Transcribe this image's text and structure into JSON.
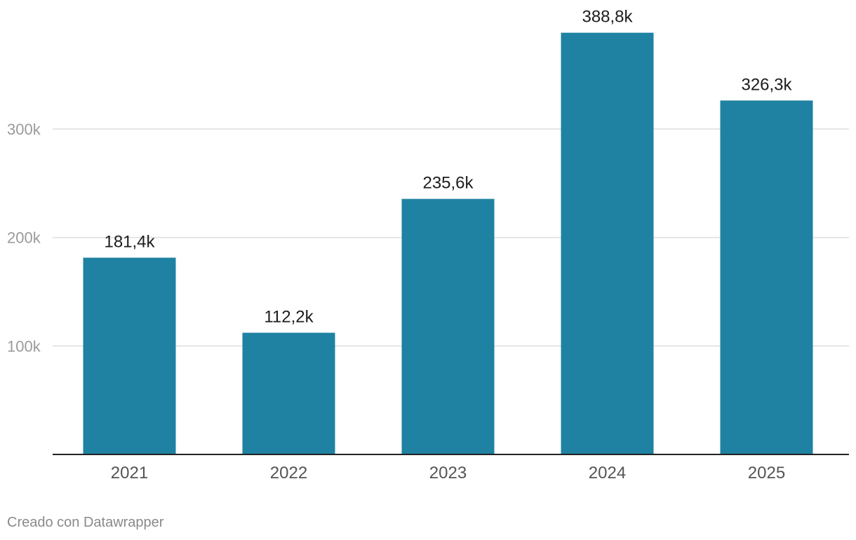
{
  "chart_data": {
    "type": "bar",
    "categories": [
      "2021",
      "2022",
      "2023",
      "2024",
      "2025"
    ],
    "values": [
      181.4,
      112.2,
      235.6,
      388.8,
      326.3
    ],
    "value_unit": "thousands",
    "data_labels": [
      "181,4k",
      "112,2k",
      "235,6k",
      "388,8k",
      "326,3k"
    ],
    "y_ticks": [
      {
        "value": 100,
        "label": "100k"
      },
      {
        "value": 200,
        "label": "200k"
      },
      {
        "value": 300,
        "label": "300k"
      }
    ],
    "ylim": [
      0,
      400
    ],
    "grid": true,
    "bar_color": "#1f82a2"
  },
  "footer": {
    "credit": "Creado con Datawrapper"
  }
}
